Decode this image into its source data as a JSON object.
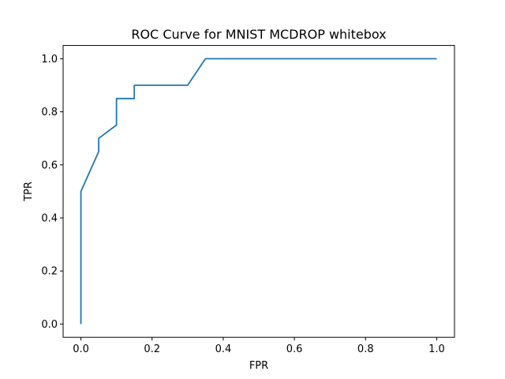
{
  "chart_data": {
    "type": "line",
    "title": "ROC Curve for MNIST MCDROP whitebox",
    "xlabel": "FPR",
    "ylabel": "TPR",
    "xlim": [
      -0.05,
      1.05
    ],
    "ylim": [
      -0.05,
      1.05
    ],
    "xticks": [
      0.0,
      0.2,
      0.4,
      0.6,
      0.8,
      1.0
    ],
    "yticks": [
      0.0,
      0.2,
      0.4,
      0.6,
      0.8,
      1.0
    ],
    "xtick_labels": [
      "0.0",
      "0.2",
      "0.4",
      "0.6",
      "0.8",
      "1.0"
    ],
    "ytick_labels": [
      "0.0",
      "0.2",
      "0.4",
      "0.6",
      "0.8",
      "1.0"
    ],
    "grid": false,
    "legend": null,
    "series": [
      {
        "color": "#1f77b4",
        "x": [
          0.0,
          0.0,
          0.05,
          0.05,
          0.1,
          0.1,
          0.15,
          0.15,
          0.3,
          0.35,
          1.0
        ],
        "y": [
          0.0,
          0.5,
          0.65,
          0.7,
          0.75,
          0.85,
          0.85,
          0.9,
          0.9,
          1.0,
          1.0
        ]
      }
    ]
  }
}
